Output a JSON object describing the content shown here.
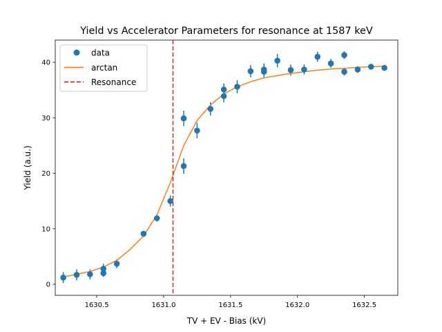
{
  "chart_data": {
    "type": "scatter",
    "title": "Yield vs Accelerator Parameters for resonance at 1587 keV",
    "xlabel": "TV + EV - Bias (kV)",
    "ylabel": "Yield (a.u.)",
    "xlim": [
      1630.19,
      1632.75
    ],
    "ylim": [
      -2,
      44
    ],
    "xticks": [
      1630.5,
      1631.0,
      1631.5,
      1632.0,
      1632.5
    ],
    "xtick_labels": [
      "1630.5",
      "1631.0",
      "1631.5",
      "1632.0",
      "1632.5"
    ],
    "yticks": [
      0,
      10,
      20,
      30,
      40
    ],
    "ytick_labels": [
      "0",
      "10",
      "20",
      "30",
      "40"
    ],
    "grid": false,
    "legend_position": "top-left",
    "colors": {
      "data": "#1f77b4",
      "fit": "#ff7f0e",
      "resonance": "#d62728"
    },
    "series": [
      {
        "name": "data",
        "kind": "errorbar",
        "points": [
          {
            "x": 1630.25,
            "y": 1.2,
            "err": 1.0
          },
          {
            "x": 1630.35,
            "y": 1.7,
            "err": 1.0
          },
          {
            "x": 1630.45,
            "y": 1.8,
            "err": 0.9
          },
          {
            "x": 1630.55,
            "y": 2.8,
            "err": 0.9
          },
          {
            "x": 1630.55,
            "y": 2.0,
            "err": 0.7
          },
          {
            "x": 1630.65,
            "y": 3.7,
            "err": 0.8
          },
          {
            "x": 1630.85,
            "y": 9.1,
            "err": 0.5
          },
          {
            "x": 1630.95,
            "y": 11.9,
            "err": 0.6
          },
          {
            "x": 1631.05,
            "y": 15.0,
            "err": 1.0
          },
          {
            "x": 1631.15,
            "y": 29.9,
            "err": 1.4
          },
          {
            "x": 1631.15,
            "y": 21.3,
            "err": 1.4
          },
          {
            "x": 1631.25,
            "y": 27.7,
            "err": 1.4
          },
          {
            "x": 1631.35,
            "y": 31.6,
            "err": 1.2
          },
          {
            "x": 1631.45,
            "y": 35.1,
            "err": 1.1
          },
          {
            "x": 1631.45,
            "y": 33.9,
            "err": 1.1
          },
          {
            "x": 1631.55,
            "y": 35.6,
            "err": 1.2
          },
          {
            "x": 1631.65,
            "y": 38.4,
            "err": 1.1
          },
          {
            "x": 1631.75,
            "y": 38.7,
            "err": 1.1
          },
          {
            "x": 1631.75,
            "y": 38.3,
            "err": 1.1
          },
          {
            "x": 1631.85,
            "y": 40.3,
            "err": 1.2
          },
          {
            "x": 1631.95,
            "y": 38.6,
            "err": 1.0
          },
          {
            "x": 1632.05,
            "y": 38.7,
            "err": 0.9
          },
          {
            "x": 1632.15,
            "y": 41.0,
            "err": 0.9
          },
          {
            "x": 1632.25,
            "y": 39.8,
            "err": 0.8
          },
          {
            "x": 1632.35,
            "y": 41.3,
            "err": 0.7
          },
          {
            "x": 1632.35,
            "y": 38.3,
            "err": 0.7
          },
          {
            "x": 1632.45,
            "y": 38.7,
            "err": 0.6
          },
          {
            "x": 1632.55,
            "y": 39.2,
            "err": 0.5
          },
          {
            "x": 1632.65,
            "y": 39.0,
            "err": 0.5
          }
        ]
      },
      {
        "name": "arctan",
        "kind": "line",
        "points": [
          {
            "x": 1630.25,
            "y": 1.3
          },
          {
            "x": 1630.35,
            "y": 1.8
          },
          {
            "x": 1630.45,
            "y": 2.3
          },
          {
            "x": 1630.55,
            "y": 3.1
          },
          {
            "x": 1630.65,
            "y": 4.3
          },
          {
            "x": 1630.75,
            "y": 6.3
          },
          {
            "x": 1630.85,
            "y": 8.7
          },
          {
            "x": 1630.95,
            "y": 12.5
          },
          {
            "x": 1631.05,
            "y": 18.3
          },
          {
            "x": 1631.15,
            "y": 25.0
          },
          {
            "x": 1631.25,
            "y": 29.5
          },
          {
            "x": 1631.35,
            "y": 32.3
          },
          {
            "x": 1631.45,
            "y": 34.3
          },
          {
            "x": 1631.55,
            "y": 35.6
          },
          {
            "x": 1631.65,
            "y": 36.5
          },
          {
            "x": 1631.75,
            "y": 37.2
          },
          {
            "x": 1631.85,
            "y": 37.6
          },
          {
            "x": 1631.95,
            "y": 38.0
          },
          {
            "x": 1632.05,
            "y": 38.3
          },
          {
            "x": 1632.15,
            "y": 38.6
          },
          {
            "x": 1632.25,
            "y": 38.8
          },
          {
            "x": 1632.35,
            "y": 38.9
          },
          {
            "x": 1632.45,
            "y": 39.1
          },
          {
            "x": 1632.55,
            "y": 39.2
          },
          {
            "x": 1632.65,
            "y": 39.3
          }
        ]
      },
      {
        "name": "Resonance",
        "kind": "vline",
        "x": 1631.07
      }
    ]
  }
}
